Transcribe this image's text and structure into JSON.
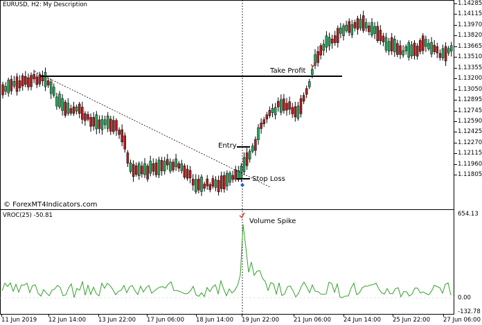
{
  "main": {
    "header": "EURUSD, H2:  My Description",
    "watermark": "© ForexMT4Indicators.com",
    "annotations": {
      "take_profit": "Take Profit",
      "entry": "Entry",
      "stop_loss": "Stop Loss"
    },
    "price_axis": [
      "1.14285",
      "1.14115",
      "1.13970",
      "1.13820",
      "1.13665",
      "1.13510",
      "1.13355",
      "1.13200",
      "1.13050",
      "1.12895",
      "1.12745",
      "1.12590",
      "1.12425",
      "1.12270",
      "1.12115",
      "1.11960",
      "1.11805"
    ]
  },
  "vroc": {
    "header": "VROC(25) -50.81",
    "spike_label": "Volume Spike",
    "axis": [
      "654.13",
      "0.00",
      "-132.78"
    ]
  },
  "time_axis": [
    "11 Jun 2019",
    "12 Jun 14:00",
    "13 Jun 22:00",
    "17 Jun 06:00",
    "18 Jun 14:00",
    "19 Jun 22:00",
    "21 Jun 06:00",
    "24 Jun 14:00",
    "25 Jun 22:00",
    "27 Jun 06:00"
  ],
  "colors": {
    "bull": "#26a65b",
    "bear": "#b41e1e",
    "vroc_line": "#33a02c",
    "level_line": "#000000",
    "signal": "#1e5bd8"
  }
}
